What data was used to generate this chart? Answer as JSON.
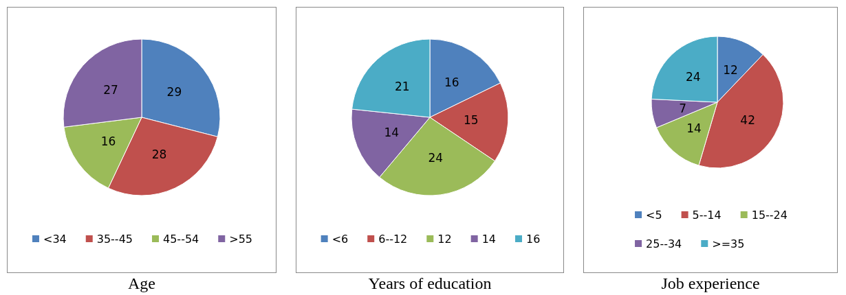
{
  "chart_data": [
    {
      "type": "pie",
      "title": "Age",
      "categories": [
        "<34",
        "35--45",
        "45--54",
        ">55"
      ],
      "values": [
        29,
        28,
        16,
        27
      ],
      "colors": [
        "#4f81bd",
        "#c0504d",
        "#9bbb59",
        "#8064a2"
      ],
      "data_labels": true,
      "legend": "bottom"
    },
    {
      "type": "pie",
      "title": "Years of education",
      "categories": [
        "<6",
        "6--12",
        "12",
        "14",
        "16"
      ],
      "values": [
        16,
        15,
        24,
        14,
        21
      ],
      "colors": [
        "#4f81bd",
        "#c0504d",
        "#9bbb59",
        "#8064a2",
        "#4bacc6"
      ],
      "data_labels": true,
      "legend": "bottom"
    },
    {
      "type": "pie",
      "title": "Job experience",
      "categories": [
        "<5",
        "5--14",
        "15--24",
        "25--34",
        ">=35"
      ],
      "values": [
        12,
        42,
        14,
        7,
        24
      ],
      "colors": [
        "#4f81bd",
        "#c0504d",
        "#9bbb59",
        "#8064a2",
        "#4bacc6"
      ],
      "data_labels": true,
      "legend": "bottom"
    }
  ]
}
